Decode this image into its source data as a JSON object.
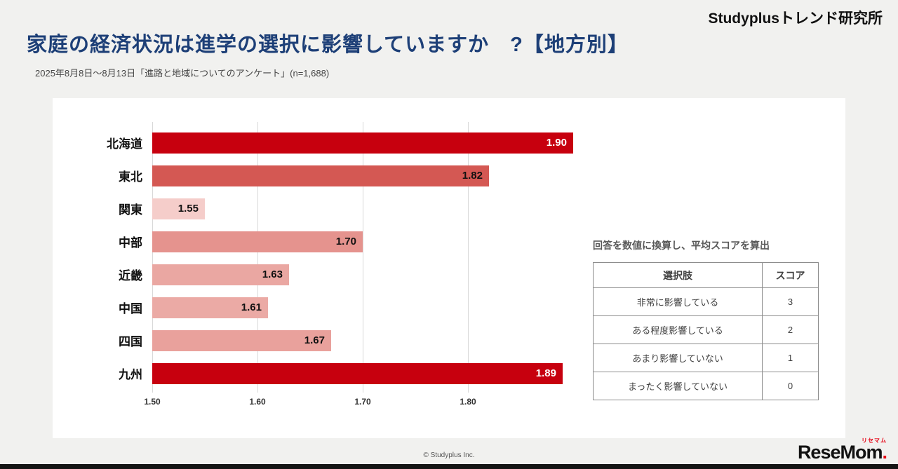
{
  "header": {
    "brand": "Studyplusトレンド研究所",
    "title": "家庭の経済状況は進学の選択に影響していますか　?【地方別】",
    "subtitle": "2025年8月8日～8月13日「進路と地域についてのアンケート」(n=1,688)"
  },
  "chart_data": {
    "type": "bar",
    "orientation": "horizontal",
    "categories": [
      "北海道",
      "東北",
      "関東",
      "中部",
      "近畿",
      "中国",
      "四国",
      "九州"
    ],
    "values": [
      1.9,
      1.82,
      1.55,
      1.7,
      1.63,
      1.61,
      1.67,
      1.89
    ],
    "value_labels": [
      "1.90",
      "1.82",
      "1.55",
      "1.70",
      "1.63",
      "1.61",
      "1.67",
      "1.89"
    ],
    "bar_colors": [
      "#c7000e",
      "#d45853",
      "#f5cdca",
      "#e5938e",
      "#eaa7a2",
      "#ebaaa5",
      "#e9a19c",
      "#c7000e"
    ],
    "value_text_colors": [
      "#ffffff",
      "#111111",
      "#111111",
      "#111111",
      "#111111",
      "#111111",
      "#111111",
      "#ffffff"
    ],
    "xlim": [
      1.5,
      1.9
    ],
    "xticks": [
      "1.50",
      "1.60",
      "1.70",
      "1.80"
    ],
    "xtick_values": [
      1.5,
      1.6,
      1.7,
      1.8
    ],
    "grid": true,
    "legend": "none",
    "title": "家庭の経済状況は進学の選択に影響していますか【地方別】平均スコア"
  },
  "score_table": {
    "note": "回答を数値に換算し、平均スコアを算出",
    "headers": [
      "選択肢",
      "スコア"
    ],
    "rows": [
      [
        "非常に影響している",
        "3"
      ],
      [
        "ある程度影響している",
        "2"
      ],
      [
        "あまり影響していない",
        "1"
      ],
      [
        "まったく影響していない",
        "0"
      ]
    ]
  },
  "footer": {
    "copyright": "© Studyplus Inc.",
    "logo_main": "ReseMom",
    "logo_dot": ".",
    "logo_sub": "リセマム"
  }
}
